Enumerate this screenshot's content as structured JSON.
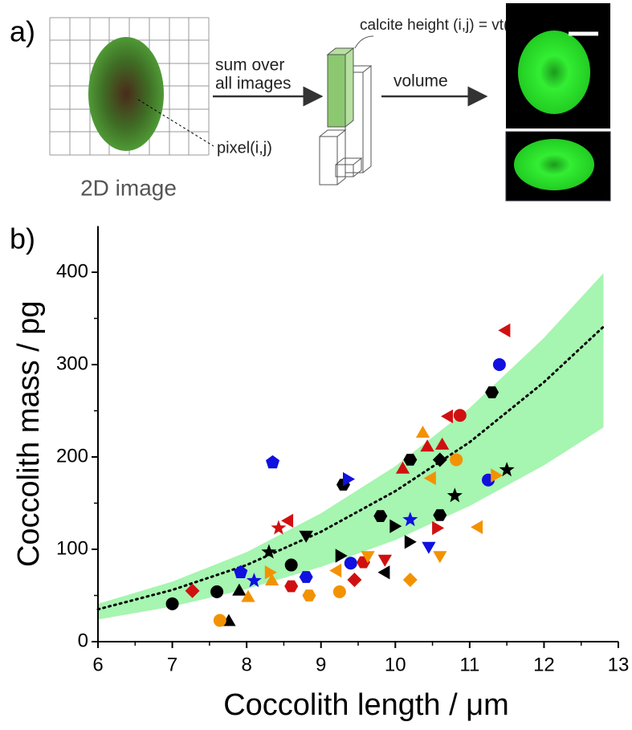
{
  "panel_a": {
    "label": "a)",
    "sum_line1": "sum over",
    "sum_line2": "all images",
    "calcite": "calcite height (i,j) = vt(i,j)",
    "volume": "volume",
    "pixel": "pixel(i,j)",
    "image_caption": "2D image"
  },
  "chart_data": {
    "type": "scatter",
    "panel_label": "b)",
    "x_label": "Coccolith length / μm",
    "y_label": "Coccolith mass / pg",
    "xlim": [
      6,
      13
    ],
    "xticks": [
      6,
      7,
      8,
      9,
      10,
      11,
      12,
      13
    ],
    "ylim": [
      0,
      450
    ],
    "yticks": [
      0,
      100,
      200,
      300,
      400
    ],
    "fit": {
      "color": "#000000",
      "x": [
        6,
        7,
        8,
        9,
        10,
        11,
        12,
        12.8
      ],
      "values": [
        35,
        56,
        83,
        119,
        163,
        216,
        281,
        341
      ]
    },
    "band": {
      "color": "#a6f5b0",
      "x": [
        6,
        7,
        8,
        9,
        10,
        11,
        12,
        12.8
      ],
      "lower": [
        24,
        38,
        57,
        81,
        110,
        147,
        191,
        232
      ],
      "upper": [
        41,
        65,
        97,
        139,
        190,
        253,
        329,
        399
      ]
    },
    "series": [
      {
        "color": "#000000",
        "marker": "circle",
        "x": [
          7.0,
          7.6,
          8.6
        ],
        "values": [
          41,
          54,
          83
        ]
      },
      {
        "color": "#000000",
        "marker": "triangle-up",
        "x": [
          7.76,
          7.9
        ],
        "values": [
          23,
          56
        ]
      },
      {
        "color": "#000000",
        "marker": "triangle-down",
        "x": [
          8.8
        ],
        "values": [
          114
        ]
      },
      {
        "color": "#000000",
        "marker": "hexagon",
        "x": [
          9.3,
          9.8,
          10.2,
          10.6,
          11.3
        ],
        "values": [
          170,
          136,
          197,
          137,
          270
        ]
      },
      {
        "color": "#000000",
        "marker": "star",
        "x": [
          8.3,
          10.8,
          11.5
        ],
        "values": [
          97,
          158,
          186
        ]
      },
      {
        "color": "#000000",
        "marker": "diamond",
        "x": [
          10.6
        ],
        "values": [
          197
        ]
      },
      {
        "color": "#000000",
        "marker": "triangle-right",
        "x": [
          9.27,
          10.0,
          10.2
        ],
        "values": [
          93,
          125,
          108
        ]
      },
      {
        "color": "#000000",
        "marker": "triangle-left",
        "x": [
          9.85
        ],
        "values": [
          75
        ]
      },
      {
        "color": "#1010e0",
        "marker": "circle",
        "x": [
          9.4,
          11.25,
          11.4
        ],
        "values": [
          85,
          175,
          300
        ]
      },
      {
        "color": "#1010e0",
        "marker": "pentagon",
        "x": [
          7.92,
          8.35
        ],
        "values": [
          75,
          194
        ]
      },
      {
        "color": "#1010e0",
        "marker": "hexagon",
        "x": [
          8.8
        ],
        "values": [
          70
        ]
      },
      {
        "color": "#1010e0",
        "marker": "star",
        "x": [
          8.1,
          10.2
        ],
        "values": [
          66,
          132
        ]
      },
      {
        "color": "#1010e0",
        "marker": "triangle-down",
        "x": [
          10.45
        ],
        "values": [
          102
        ]
      },
      {
        "color": "#1010e0",
        "marker": "triangle-right",
        "x": [
          9.37
        ],
        "values": [
          176
        ]
      },
      {
        "color": "#d01010",
        "marker": "triangle-left",
        "x": [
          8.55,
          10.7,
          11.47
        ],
        "values": [
          131,
          244,
          337
        ]
      },
      {
        "color": "#d01010",
        "marker": "circle",
        "x": [
          10.87
        ],
        "values": [
          245
        ]
      },
      {
        "color": "#d01010",
        "marker": "triangle-up",
        "x": [
          10.1,
          10.43,
          10.63
        ],
        "values": [
          188,
          212,
          214
        ]
      },
      {
        "color": "#d01010",
        "marker": "star",
        "x": [
          8.43
        ],
        "values": [
          123
        ]
      },
      {
        "color": "#d01010",
        "marker": "diamond",
        "x": [
          7.27,
          9.45
        ],
        "values": [
          55,
          67
        ]
      },
      {
        "color": "#d01010",
        "marker": "hexagon",
        "x": [
          8.6,
          9.57
        ],
        "values": [
          60,
          86
        ]
      },
      {
        "color": "#d01010",
        "marker": "triangle-down",
        "x": [
          9.86
        ],
        "values": [
          88
        ]
      },
      {
        "color": "#d01010",
        "marker": "triangle-right",
        "x": [
          10.57
        ],
        "values": [
          123
        ]
      },
      {
        "color": "#f39200",
        "marker": "circle",
        "x": [
          7.64,
          9.25,
          10.82
        ],
        "values": [
          23,
          54,
          197
        ]
      },
      {
        "color": "#f39200",
        "marker": "hexagon",
        "x": [
          8.84
        ],
        "values": [
          50
        ]
      },
      {
        "color": "#f39200",
        "marker": "triangle-up",
        "x": [
          8.02,
          8.34,
          10.37
        ],
        "values": [
          49,
          67,
          227
        ]
      },
      {
        "color": "#f39200",
        "marker": "triangle-right",
        "x": [
          8.32,
          11.36
        ],
        "values": [
          75,
          180
        ]
      },
      {
        "color": "#f39200",
        "marker": "triangle-left",
        "x": [
          9.2,
          10.47,
          11.1
        ],
        "values": [
          77,
          177,
          124
        ]
      },
      {
        "color": "#f39200",
        "marker": "triangle-down",
        "x": [
          9.63,
          10.6
        ],
        "values": [
          92,
          92
        ]
      },
      {
        "color": "#f39200",
        "marker": "diamond",
        "x": [
          10.2
        ],
        "values": [
          67
        ]
      }
    ]
  }
}
